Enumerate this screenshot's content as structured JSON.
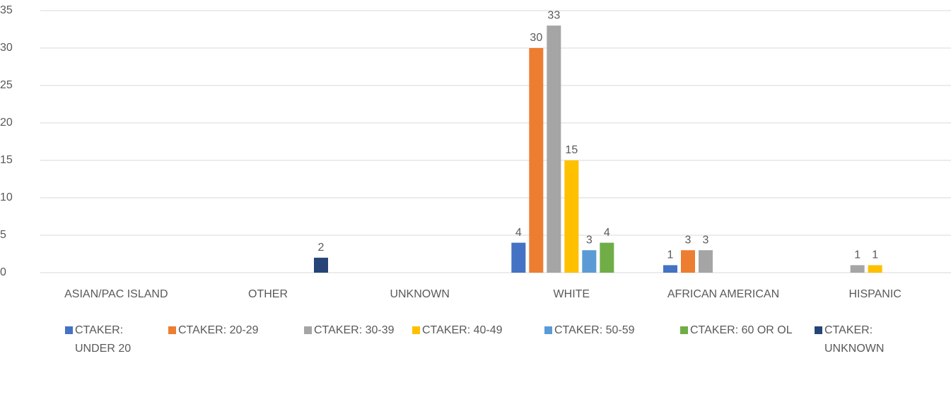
{
  "chart_data": {
    "type": "bar",
    "categories": [
      "ASIAN/PAC ISLAND",
      "OTHER",
      "UNKNOWN",
      "WHITE",
      "AFRICAN AMERICAN",
      "HISPANIC"
    ],
    "series": [
      {
        "name": "CTAKER: UNDER 20",
        "color": "#4472c4",
        "values": [
          null,
          null,
          null,
          4,
          1,
          null
        ]
      },
      {
        "name": "CTAKER: 20-29",
        "color": "#ed7d31",
        "values": [
          null,
          null,
          null,
          30,
          3,
          null
        ]
      },
      {
        "name": "CTAKER: 30-39",
        "color": "#a5a5a5",
        "values": [
          null,
          null,
          null,
          33,
          3,
          1
        ]
      },
      {
        "name": "CTAKER: 40-49",
        "color": "#ffc000",
        "values": [
          null,
          null,
          null,
          15,
          null,
          1
        ]
      },
      {
        "name": "CTAKER: 50-59",
        "color": "#5b9bd5",
        "values": [
          null,
          null,
          null,
          3,
          null,
          null
        ]
      },
      {
        "name": "CTAKER: 60 OR OL",
        "color": "#70ad47",
        "values": [
          null,
          null,
          null,
          4,
          null,
          null
        ]
      },
      {
        "name": "CTAKER: UNKNOWN",
        "color": "#264478",
        "values": [
          null,
          2,
          null,
          null,
          null,
          null
        ]
      }
    ],
    "ylim": [
      0,
      35
    ],
    "yticks": [
      0,
      5,
      10,
      15,
      20,
      25,
      30,
      35
    ],
    "grid": true,
    "legend": "bottom"
  }
}
